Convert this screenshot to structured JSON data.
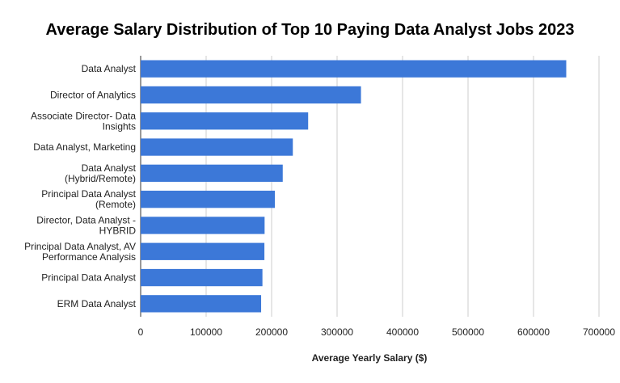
{
  "chart_data": {
    "type": "bar",
    "orientation": "horizontal",
    "title": "Average Salary Distribution of Top 10 Paying Data Analyst Jobs 2023",
    "xlabel": "Average Yearly Salary ($)",
    "ylabel": "",
    "xlim": [
      0,
      700000
    ],
    "x_ticks": [
      "0",
      "100000",
      "200000",
      "300000",
      "400000",
      "500000",
      "600000",
      "700000"
    ],
    "grid": "vertical",
    "bar_color": "#3c78d8",
    "categories": [
      [
        "Data Analyst"
      ],
      [
        "Director of Analytics"
      ],
      [
        "Associate Director- Data",
        "Insights"
      ],
      [
        "Data Analyst, Marketing"
      ],
      [
        "Data Analyst",
        "(Hybrid/Remote)"
      ],
      [
        "Principal Data Analyst",
        "(Remote)"
      ],
      [
        "Director, Data Analyst -",
        "HYBRID"
      ],
      [
        "Principal Data Analyst, AV",
        "Performance Analysis"
      ],
      [
        "Principal Data Analyst"
      ],
      [
        "ERM Data Analyst"
      ]
    ],
    "values": [
      650000,
      336500,
      255829,
      232423,
      217000,
      205000,
      189309,
      189000,
      186000,
      184000
    ]
  }
}
